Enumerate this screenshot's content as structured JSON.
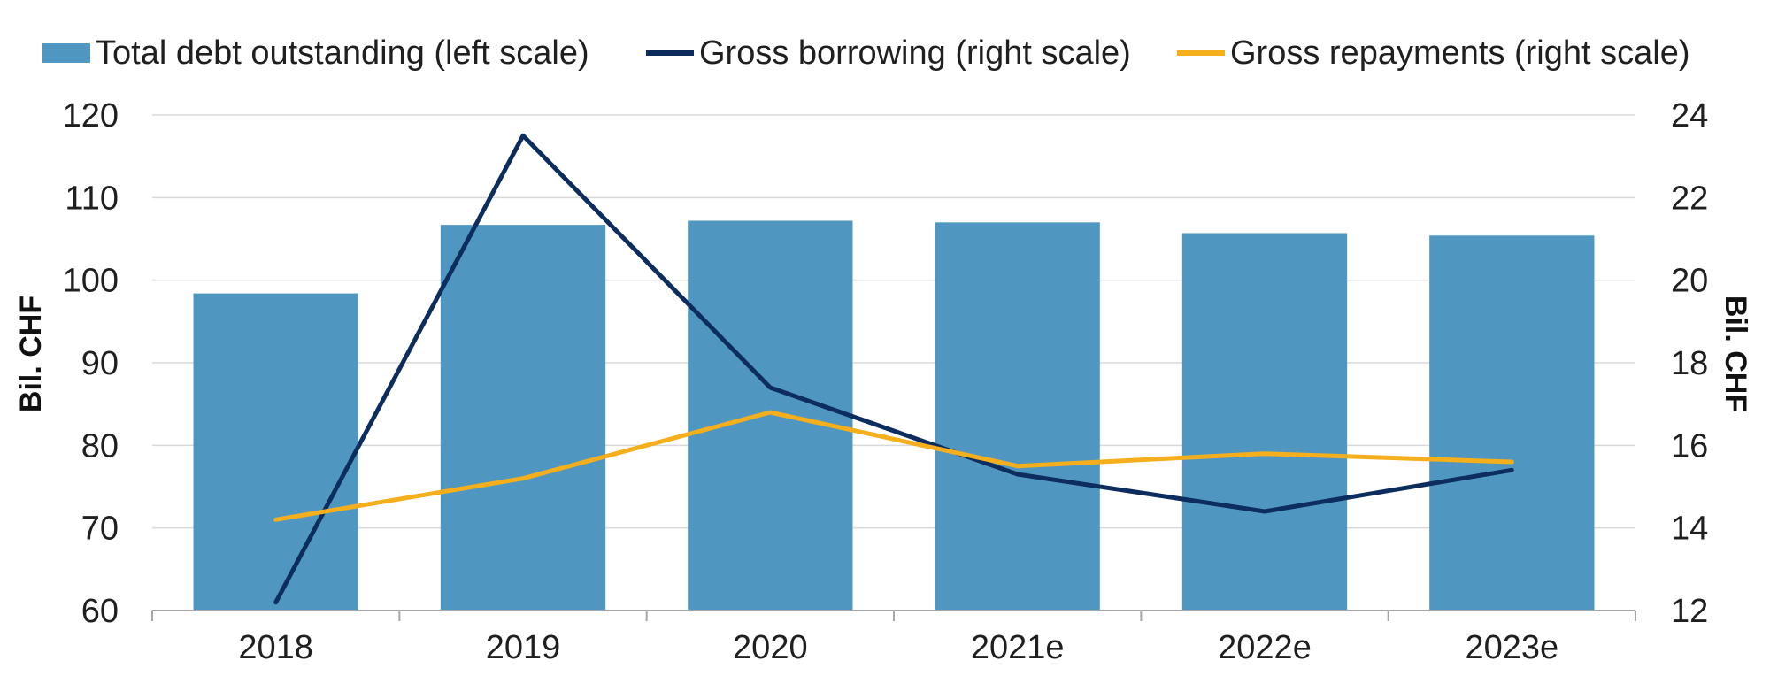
{
  "chart_data": {
    "type": "bar",
    "categories": [
      "2018",
      "2019",
      "2020",
      "2021e",
      "2022e",
      "2023e"
    ],
    "bars": {
      "name": "Total debt outstanding (left scale)",
      "values": [
        98.4,
        106.7,
        107.2,
        107.0,
        105.7,
        105.4
      ],
      "color": "#4f97c1"
    },
    "series": [
      {
        "name": "Gross borrowing (right scale)",
        "values": [
          12.2,
          23.5,
          17.4,
          15.3,
          14.4,
          15.4
        ],
        "color": "#0d2d5e"
      },
      {
        "name": "Gross repayments (right scale)",
        "values": [
          14.2,
          15.2,
          16.8,
          15.5,
          15.8,
          15.6
        ],
        "color": "#f5ae1c"
      }
    ],
    "ylabel": "Bil. CHF",
    "y2label": "Bil. CHF",
    "ylim": [
      60,
      120
    ],
    "y2lim": [
      12,
      24
    ],
    "yticks": [
      "60",
      "70",
      "80",
      "90",
      "100",
      "110",
      "120"
    ],
    "y2ticks": [
      "12",
      "14",
      "16",
      "18",
      "20",
      "22",
      "24"
    ],
    "grid": true,
    "legend_position": "top"
  }
}
